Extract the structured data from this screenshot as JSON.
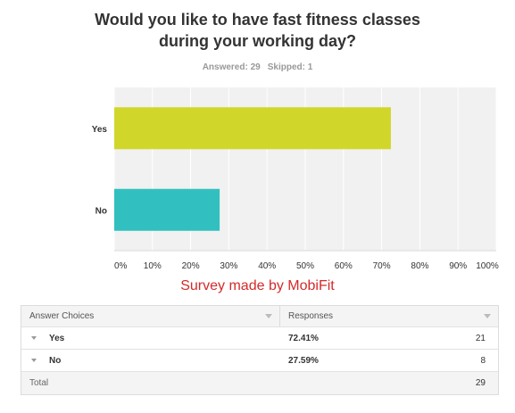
{
  "survey": {
    "title_line1": "Would you like to have fast fitness classes",
    "title_line2": "during your working day?",
    "answered": "Answered: 29",
    "skipped": "Skipped: 1",
    "credit": "Survey made by MobiFit"
  },
  "chart_data": {
    "type": "bar",
    "orientation": "horizontal",
    "categories": [
      "Yes",
      "No"
    ],
    "values": [
      72.41,
      27.59
    ],
    "colors": [
      "#d0d72a",
      "#32bfbf"
    ],
    "xlim": [
      0,
      100
    ],
    "xticks": [
      "0%",
      "10%",
      "20%",
      "30%",
      "40%",
      "50%",
      "60%",
      "70%",
      "80%",
      "90%",
      "100%"
    ],
    "grid": true,
    "title": "",
    "xlabel": "",
    "ylabel": ""
  },
  "table": {
    "headers": [
      "Answer Choices",
      "Responses"
    ],
    "rows": [
      {
        "choice": "Yes",
        "percent": "72.41%",
        "count": "21"
      },
      {
        "choice": "No",
        "percent": "27.59%",
        "count": "8"
      }
    ],
    "total_label": "Total",
    "total_count": "29"
  },
  "colors": {
    "plot_bg": "#f1f1f1",
    "credit_red": "#d42a2a"
  }
}
